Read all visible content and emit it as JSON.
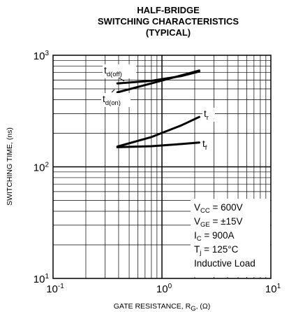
{
  "chart_data": {
    "type": "line",
    "title_lines": [
      "HALF-BRIDGE",
      "SWITCHING CHARACTERISTICS",
      "(TYPICAL)"
    ],
    "xlabel": {
      "main": "GATE RESISTANCE, R",
      "sub": "G",
      "unit": ", (Ω)"
    },
    "ylabel": "SWITCHING TIME, (ns)",
    "xscale": "log",
    "yscale": "log",
    "xlim": [
      0.1,
      10
    ],
    "ylim": [
      10,
      1000
    ],
    "x_ticks": [
      {
        "base": "10",
        "exp": "-1"
      },
      {
        "base": "10",
        "exp": "0"
      },
      {
        "base": "10",
        "exp": "1"
      }
    ],
    "y_ticks": [
      {
        "base": "10",
        "exp": "1"
      },
      {
        "base": "10",
        "exp": "2"
      },
      {
        "base": "10",
        "exp": "3"
      }
    ],
    "grid": true,
    "conditions": [
      {
        "main": "V",
        "sub": "CC",
        "rest": " = 600V"
      },
      {
        "main": "V",
        "sub": "GE",
        "rest": " = ±15V"
      },
      {
        "main": "I",
        "sub": "C",
        "rest": " = 900A"
      },
      {
        "main": "T",
        "sub": "j",
        "rest": " = 125°C"
      },
      {
        "main": "Inductive Load",
        "sub": "",
        "rest": ""
      }
    ],
    "series": [
      {
        "name": "t",
        "sub": "d(off)",
        "x": [
          0.39,
          0.8,
          1.5,
          2.2
        ],
        "y": [
          560,
          590,
          650,
          715
        ]
      },
      {
        "name": "t",
        "sub": "d(on)",
        "x": [
          0.39,
          0.8,
          1.5,
          2.2
        ],
        "y": [
          465,
          560,
          660,
          730
        ]
      },
      {
        "name": "t",
        "sub": "r",
        "x": [
          0.39,
          0.8,
          1.5,
          2.2
        ],
        "y": [
          152,
          185,
          235,
          280
        ]
      },
      {
        "name": "t",
        "sub": "f",
        "x": [
          0.39,
          0.8,
          1.5,
          2.2
        ],
        "y": [
          150,
          153,
          160,
          165
        ]
      }
    ]
  }
}
